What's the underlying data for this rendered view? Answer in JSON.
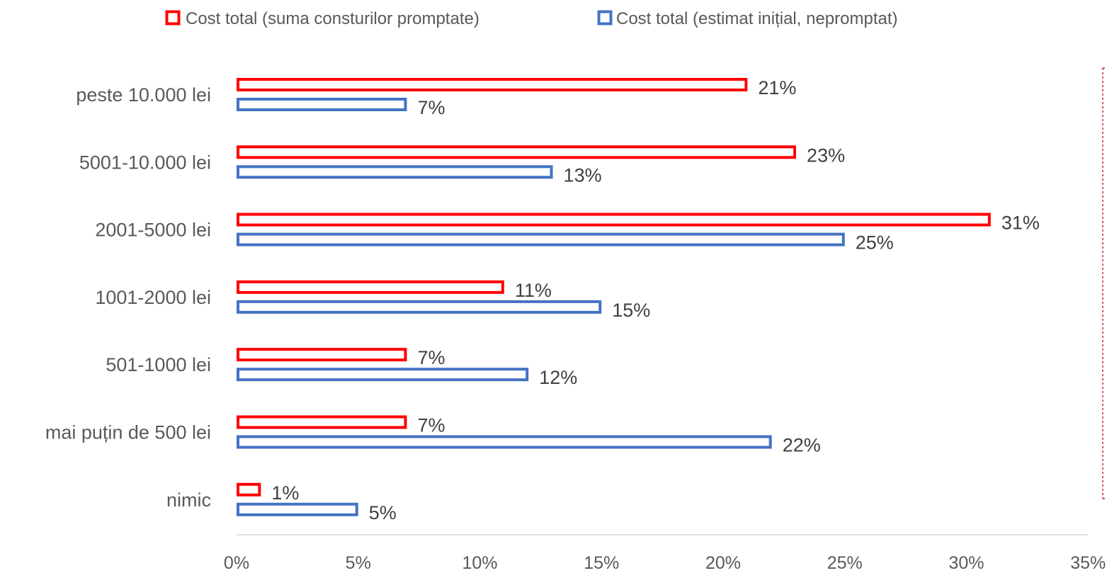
{
  "chart_data": {
    "type": "bar",
    "orientation": "horizontal",
    "categories": [
      "peste 10.000 lei",
      "5001-10.000 lei",
      "2001-5000 lei",
      "1001-2000 lei",
      "501-1000 lei",
      "mai puțin de 500 lei",
      "nimic"
    ],
    "series": [
      {
        "name": "Cost total (suma consturilor promptate)",
        "color": "#ff0000",
        "values": [
          21,
          23,
          31,
          11,
          7,
          7,
          1
        ],
        "labels": [
          "21%",
          "23%",
          "31%",
          "11%",
          "7%",
          "7%",
          "1%"
        ]
      },
      {
        "name": "Cost total (estimat inițial,  nepromptat)",
        "color": "#4472c4",
        "values": [
          7,
          13,
          25,
          15,
          12,
          22,
          5
        ],
        "labels": [
          "7%",
          "13%",
          "25%",
          "15%",
          "12%",
          "22%",
          "5%"
        ]
      }
    ],
    "xlim": [
      0,
      35
    ],
    "x_ticks": [
      "0%",
      "5%",
      "10%",
      "15%",
      "20%",
      "25%",
      "30%",
      "35%"
    ],
    "legend_position": "top",
    "grid": false,
    "title": "",
    "xlabel": "",
    "ylabel": ""
  }
}
